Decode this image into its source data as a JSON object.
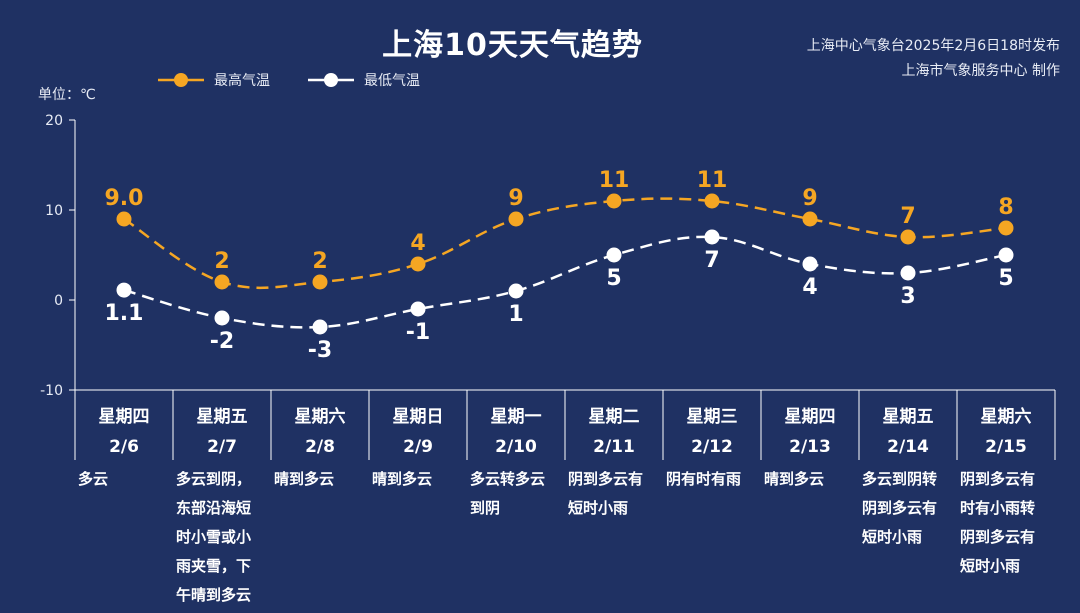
{
  "header": {
    "title": "上海10天天气趋势",
    "issuer_line1": "上海中心气象台2025年2月6日18时发布",
    "issuer_line2": "上海市气象服务中心 制作",
    "unit": "单位：℃"
  },
  "colors": {
    "background": "#1f3163",
    "high": "#f5a623",
    "low": "#ffffff",
    "axis": "#ffffff"
  },
  "chart_data": {
    "type": "line",
    "title": "上海10天天气趋势",
    "ylabel": "单位：℃",
    "ylim": [
      -10,
      20
    ],
    "yticks": [
      -10,
      0,
      10,
      20
    ],
    "grid": false,
    "legend_position": "top-left",
    "days": [
      {
        "weekday": "星期四",
        "date": "2/6",
        "weather": "多云"
      },
      {
        "weekday": "星期五",
        "date": "2/7",
        "weather": "多云到阴，\n东部沿海短\n时小雪或小\n雨夹雪，下\n午晴到多云"
      },
      {
        "weekday": "星期六",
        "date": "2/8",
        "weather": "晴到多云"
      },
      {
        "weekday": "星期日",
        "date": "2/9",
        "weather": "晴到多云"
      },
      {
        "weekday": "星期一",
        "date": "2/10",
        "weather": "多云转多云\n到阴"
      },
      {
        "weekday": "星期二",
        "date": "2/11",
        "weather": "阴到多云有\n短时小雨"
      },
      {
        "weekday": "星期三",
        "date": "2/12",
        "weather": "阴有时有雨"
      },
      {
        "weekday": "星期四",
        "date": "2/13",
        "weather": "晴到多云"
      },
      {
        "weekday": "星期五",
        "date": "2/14",
        "weather": "多云到阴转\n阴到多云有\n短时小雨"
      },
      {
        "weekday": "星期六",
        "date": "2/15",
        "weather": "阴到多云有\n时有小雨转\n阴到多云有\n短时小雨"
      }
    ],
    "series": [
      {
        "name": "最高气温",
        "values": [
          9,
          2,
          2,
          4,
          9,
          11,
          11,
          9,
          7,
          8
        ],
        "labels": [
          "9.0",
          "2",
          "2",
          "4",
          "9",
          "11",
          "11",
          "9",
          "7",
          "8"
        ],
        "color": "#f5a623"
      },
      {
        "name": "最低气温",
        "values": [
          1.1,
          -2,
          -3,
          -1,
          1,
          5,
          7,
          4,
          3,
          5
        ],
        "labels": [
          "1.1",
          "-2",
          "-3",
          "-1",
          "1",
          "5",
          "7",
          "4",
          "3",
          "5"
        ],
        "color": "#ffffff"
      }
    ]
  }
}
